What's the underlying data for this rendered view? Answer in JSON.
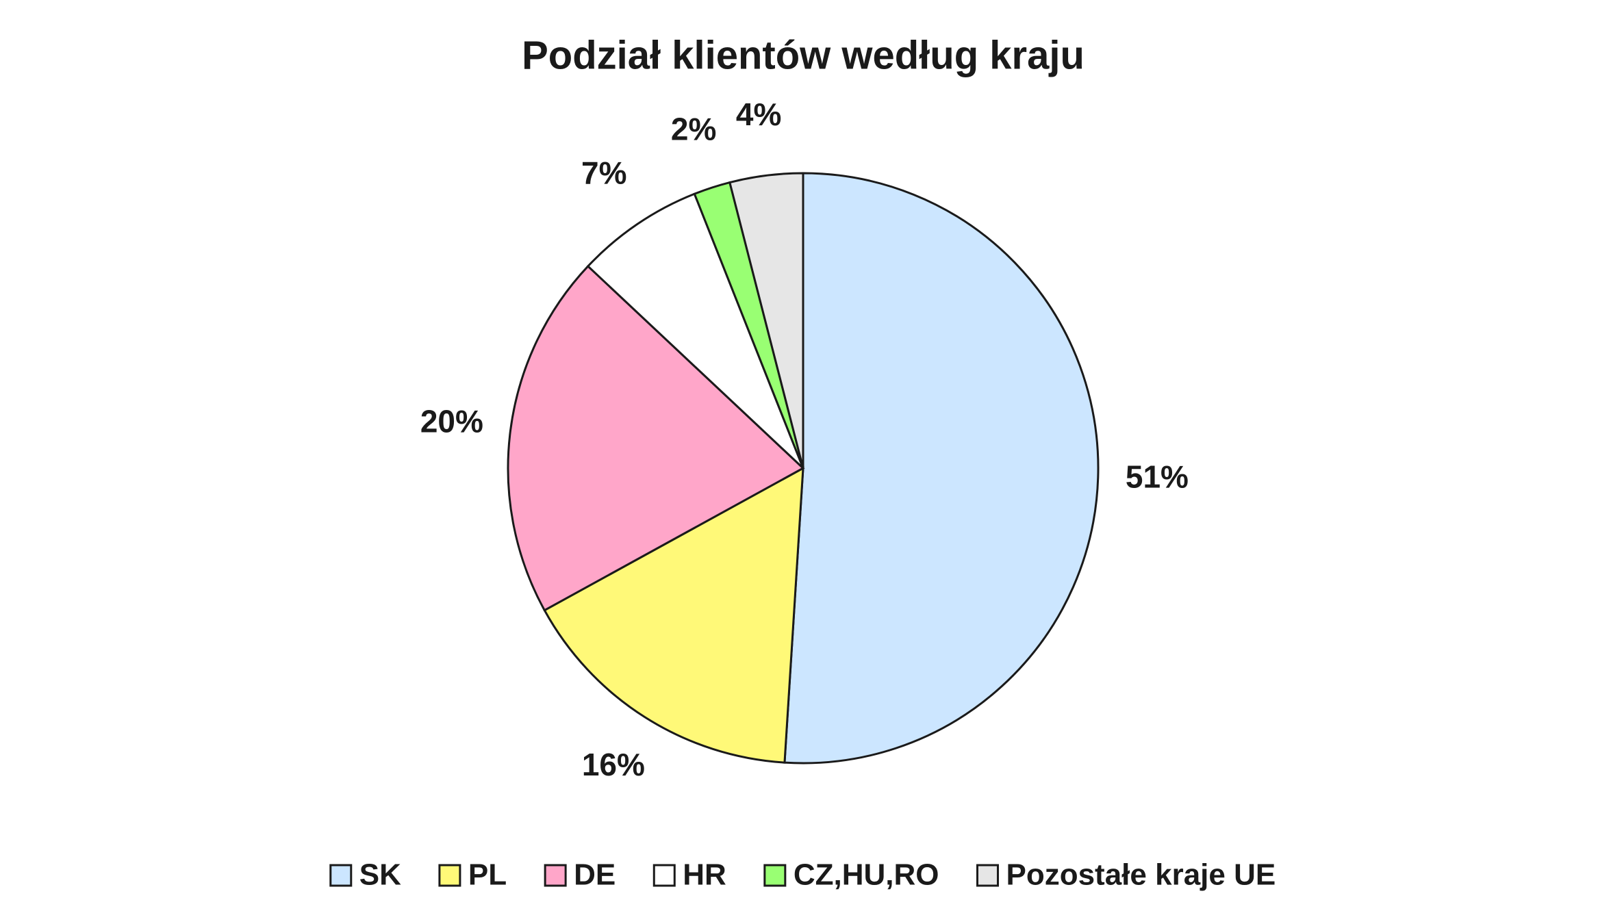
{
  "chart_data": {
    "type": "pie",
    "title": "Podział klientów według kraju",
    "categories": [
      "SK",
      "PL",
      "DE",
      "HR",
      "CZ,HU,RO",
      "Pozostałe kraje UE"
    ],
    "values": [
      51,
      16,
      20,
      7,
      2,
      4
    ],
    "value_labels": [
      "51%",
      "16%",
      "20%",
      "7%",
      "2%",
      "4%"
    ],
    "colors": [
      "#cce6ff",
      "#fff978",
      "#ffa6c9",
      "#ffffff",
      "#99ff73",
      "#e6e6e6"
    ],
    "legend": "bottom"
  }
}
